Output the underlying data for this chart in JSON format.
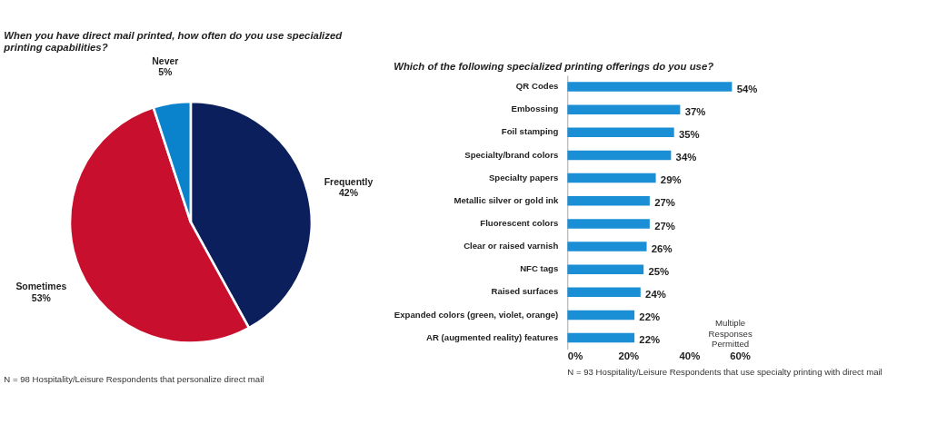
{
  "chart_data": [
    {
      "type": "pie",
      "title": "When you have direct mail printed, how often do you use specialized printing capabilities?",
      "categories": [
        "Frequently",
        "Sometimes",
        "Never"
      ],
      "values": [
        42,
        53,
        5
      ],
      "colors": [
        "#0b1f5c",
        "#c8102e",
        "#0a82cc"
      ],
      "value_labels": [
        "42%",
        "53%",
        "5%"
      ],
      "annotations": [
        "N = 98 Hospitality/Leisure Respondents that personalize direct mail"
      ]
    },
    {
      "type": "bar",
      "orientation": "horizontal",
      "title": "Which of the following specialized printing offerings do you use?",
      "categories": [
        "QR Codes",
        "Embossing",
        "Foil stamping",
        "Specialty/brand colors",
        "Specialty papers",
        "Metallic silver or gold ink",
        "Fluorescent colors",
        "Clear or raised varnish",
        "NFC tags",
        "Raised surfaces",
        "Expanded colors (green, violet, orange)",
        "AR (augmented reality) features"
      ],
      "values": [
        54,
        37,
        35,
        34,
        29,
        27,
        27,
        26,
        25,
        24,
        22,
        22
      ],
      "value_labels": [
        "54%",
        "37%",
        "35%",
        "34%",
        "29%",
        "27%",
        "27%",
        "26%",
        "25%",
        "24%",
        "22%",
        "22%"
      ],
      "color": "#1a8fd6",
      "xlim": [
        0,
        60
      ],
      "xticks": [
        {
          "value": 0,
          "label": "0%"
        },
        {
          "value": 20,
          "label": "20%"
        },
        {
          "value": 40,
          "label": "40%"
        },
        {
          "value": 60,
          "label": "60%"
        }
      ],
      "grid": false,
      "annotations": [
        "Multiple Responses Permitted",
        "N = 93 Hospitality/Leisure Respondents that use specialty printing with direct mail"
      ]
    }
  ]
}
